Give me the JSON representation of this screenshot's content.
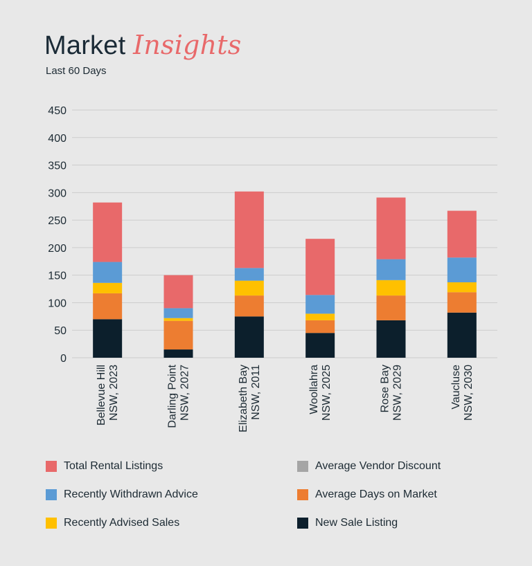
{
  "header": {
    "title_main": "Market",
    "title_accent": "Insights",
    "subtitle": "Last 60 Days"
  },
  "colors": {
    "total_rental": "#e8696a",
    "withdrawn": "#5b9bd5",
    "advised": "#ffc000",
    "days_on_market": "#ed7d31",
    "vendor_discount": "#a5a5a5",
    "new_sale": "#0c1f2c",
    "grid": "#cccccc",
    "text": "#1c2a33"
  },
  "chart_data": {
    "type": "bar",
    "stacked": true,
    "categories": [
      [
        "Bellevue Hill",
        "NSW, 2023"
      ],
      [
        "Darling Point",
        "NSW, 2027"
      ],
      [
        "Elizabeth Bay",
        "NSW, 2011"
      ],
      [
        "Woollahra",
        "NSW, 2025"
      ],
      [
        "Rose Bay",
        "NSW, 2029"
      ],
      [
        "Vaucluse",
        "NSW, 2030"
      ]
    ],
    "ylim": [
      0,
      450
    ],
    "yticks": [
      0,
      50,
      100,
      150,
      200,
      250,
      300,
      350,
      400,
      450
    ],
    "grid": true,
    "legend_position": "bottom",
    "series": [
      {
        "name": "New Sale Listing",
        "color_key": "new_sale",
        "values": [
          70,
          15,
          75,
          45,
          68,
          82
        ]
      },
      {
        "name": "Average Days on Market",
        "color_key": "days_on_market",
        "values": [
          47,
          52,
          38,
          23,
          45,
          37
        ]
      },
      {
        "name": "Average Vendor Discount",
        "color_key": "vendor_discount",
        "values": [
          0,
          0,
          0,
          0,
          0,
          0
        ]
      },
      {
        "name": "Recently Advised Sales",
        "color_key": "advised",
        "values": [
          19,
          5,
          27,
          12,
          28,
          18
        ]
      },
      {
        "name": "Recently Withdrawn Advice",
        "color_key": "withdrawn",
        "values": [
          38,
          18,
          23,
          34,
          38,
          45
        ]
      },
      {
        "name": "Total Rental Listings",
        "color_key": "total_rental",
        "values": [
          108,
          60,
          139,
          102,
          112,
          85
        ]
      }
    ]
  },
  "legend": [
    {
      "label": "Total Rental Listings",
      "color_key": "total_rental"
    },
    {
      "label": "Average Vendor Discount",
      "color_key": "vendor_discount"
    },
    {
      "label": "Recently Withdrawn Advice",
      "color_key": "withdrawn"
    },
    {
      "label": "Average Days on Market",
      "color_key": "days_on_market"
    },
    {
      "label": "Recently Advised Sales",
      "color_key": "advised"
    },
    {
      "label": "New Sale Listing",
      "color_key": "new_sale"
    }
  ]
}
